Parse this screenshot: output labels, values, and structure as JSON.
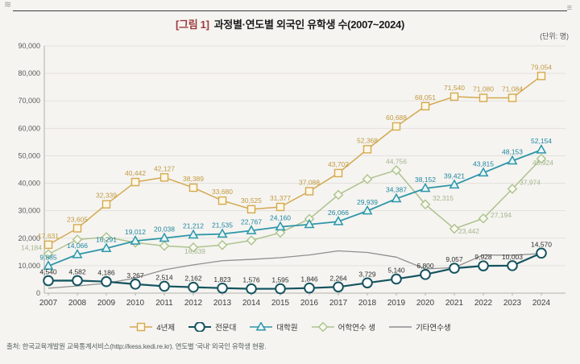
{
  "page": {
    "corner_left_glyph": "≋",
    "corner_right_glyph": "≡"
  },
  "header": {
    "title_prefix": "[그림 1]",
    "title_text": "과정별·연도별 외국인 유학생 수(2007~2024)",
    "unit_label": "(단위: 명)"
  },
  "footer": {
    "source_text": "출처: 한국교육개발원 교육통계서비스(http://kess.kedi.re.kr). 연도별 '국내' 외국인 유학생 현황."
  },
  "chart_data": {
    "type": "line",
    "title": "[그림 1] 과정별·연도별 외국인 유학생 수(2007~2024)",
    "unit": "명",
    "x": [
      2007,
      2008,
      2009,
      2010,
      2011,
      2012,
      2013,
      2014,
      2015,
      2016,
      2017,
      2018,
      2019,
      2020,
      2021,
      2022,
      2023,
      2024
    ],
    "x_labels": [
      "2007",
      "2008",
      "2009",
      "2010",
      "2011",
      "2012",
      "2013",
      "2014",
      "2015",
      "2016",
      "2017",
      "2018",
      "2019",
      "2020",
      "2021",
      "2022",
      "2023",
      "2024"
    ],
    "ylim": [
      0,
      90000
    ],
    "ytick_step": 10000,
    "ytick_labels": [
      "0",
      "10,000",
      "20,000",
      "30,000",
      "40,000",
      "50,000",
      "60,000",
      "70,000",
      "80,000",
      "90,000"
    ],
    "grid": true,
    "legend_position": "bottom",
    "series": [
      {
        "id": "univ-4year",
        "name": "4년제",
        "marker": "square",
        "color": "#d5a94f",
        "marker_fill": "#fdf7e6",
        "label_color": "#c3993f",
        "values": [
          17631,
          23605,
          32339,
          40442,
          42127,
          38389,
          33680,
          30525,
          31377,
          37088,
          43702,
          52368,
          60688,
          68051,
          71540,
          71080,
          71084,
          79054
        ],
        "labels": [
          "17,631",
          "23,605",
          "32,339",
          "40,442",
          "42,127",
          "38,389",
          "33,680",
          "30,525",
          "31,377",
          "37,088",
          "43,702",
          "52,368",
          "60,688",
          "68,051",
          "71,540",
          "71,080",
          "71,084",
          "79,054"
        ]
      },
      {
        "id": "junior-college",
        "name": "전문대",
        "marker": "circle",
        "color": "#15545f",
        "marker_fill": "#ffffff",
        "label_color": "#2e2e2e",
        "values": [
          4540,
          4582,
          4186,
          3267,
          2514,
          2162,
          1823,
          1576,
          1595,
          1846,
          2264,
          3729,
          5140,
          6800,
          9057,
          9928,
          10003,
          14570
        ],
        "labels": [
          "4,540",
          "4,582",
          "4,186",
          "3,267",
          "2,514",
          "2,162",
          "1,823",
          "1,576",
          "1,595",
          "1,846",
          "2,264",
          "3,729",
          "5,140",
          "6,800",
          "9,057",
          "9,928",
          "10,003",
          "14,570"
        ]
      },
      {
        "id": "grad-school",
        "name": "대학원",
        "marker": "triangle",
        "color": "#2e96a8",
        "marker_fill": "#e8f6f7",
        "label_color": "#1f86a0",
        "values": [
          9885,
          14066,
          16291,
          19012,
          20038,
          21212,
          21535,
          22767,
          24160,
          25000,
          26066,
          29939,
          34387,
          38152,
          39421,
          43815,
          48153,
          52154
        ],
        "labels": [
          "9,885",
          "14,066",
          "16,291",
          "19,012",
          "20,038",
          "21,212",
          "21,535",
          "22,767",
          "24,160",
          null,
          "26,066",
          "29,939",
          "34,387",
          "38,152",
          "39,421",
          "43,815",
          "48,153",
          "52,154"
        ]
      },
      {
        "id": "language-trainee",
        "name": "어학연수 생",
        "marker": "diamond",
        "color": "#adc28d",
        "marker_fill": "#f7f9f0",
        "label_color": "#a5b58e",
        "values": [
          14184,
          19500,
          20400,
          18400,
          17200,
          16639,
          17500,
          19200,
          22000,
          27000,
          35800,
          41500,
          44756,
          32315,
          23442,
          27194,
          37974,
          48924
        ],
        "labels": [
          "14,184",
          null,
          null,
          null,
          null,
          "16,639",
          null,
          null,
          null,
          null,
          null,
          null,
          "44,756",
          "32,315",
          "23,442",
          "27,194",
          "37,974",
          "48,924"
        ]
      },
      {
        "id": "other-trainee",
        "name": "기타연수생",
        "marker": "none",
        "color": "#8f8f8f",
        "marker_fill": "#8f8f8f",
        "label_color": "#8f8f8f",
        "values": [
          1800,
          2600,
          3600,
          5500,
          8500,
          10300,
          11800,
          12300,
          12900,
          13900,
          15400,
          14800,
          13100,
          8800,
          9300,
          13900,
          13800,
          14400
        ],
        "labels": [
          null,
          null,
          null,
          null,
          null,
          null,
          null,
          null,
          null,
          null,
          null,
          null,
          null,
          null,
          null,
          null,
          null,
          null
        ]
      }
    ]
  }
}
